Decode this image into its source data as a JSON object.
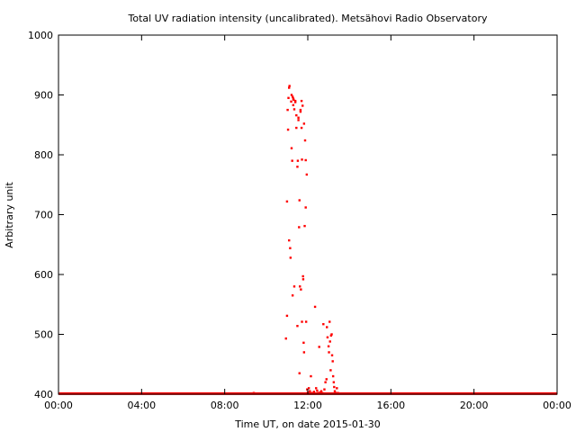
{
  "chart_data": {
    "type": "scatter",
    "title": "Total UV radiation intensity (uncalibrated). Metsähovi Radio Observatory",
    "xlabel": "Time UT, on date 2015-01-30",
    "ylabel": "Arbitrary unit",
    "x_unit": "hours UT",
    "xlim": [
      0,
      24
    ],
    "ylim": [
      400,
      1000
    ],
    "x_ticks": [
      {
        "value": 0,
        "label": "00:00"
      },
      {
        "value": 4,
        "label": "04:00"
      },
      {
        "value": 8,
        "label": "08:00"
      },
      {
        "value": 12,
        "label": "12:00"
      },
      {
        "value": 16,
        "label": "16:00"
      },
      {
        "value": 20,
        "label": "20:00"
      },
      {
        "value": 24,
        "label": "00:00"
      }
    ],
    "y_ticks": [
      {
        "value": 400,
        "label": "400"
      },
      {
        "value": 500,
        "label": "500"
      },
      {
        "value": 600,
        "label": "600"
      },
      {
        "value": 700,
        "label": "700"
      },
      {
        "value": 800,
        "label": "800"
      },
      {
        "value": 900,
        "label": "900"
      },
      {
        "value": 1000,
        "label": "1000"
      }
    ],
    "grid": false,
    "legend": "none",
    "color": "#ff0000",
    "baseline": {
      "x_start": 0,
      "x_end": 24,
      "value": 401
    },
    "series": [
      {
        "points": [
          [
            9.4,
            402
          ],
          [
            10.95,
            493
          ],
          [
            11.0,
            531
          ],
          [
            11.0,
            722
          ],
          [
            11.03,
            875
          ],
          [
            11.05,
            842
          ],
          [
            11.07,
            895
          ],
          [
            11.1,
            657
          ],
          [
            11.1,
            912
          ],
          [
            11.12,
            915
          ],
          [
            11.15,
            644
          ],
          [
            11.17,
            628
          ],
          [
            11.2,
            889
          ],
          [
            11.22,
            900
          ],
          [
            11.22,
            811
          ],
          [
            11.25,
            790
          ],
          [
            11.27,
            897
          ],
          [
            11.27,
            565
          ],
          [
            11.3,
            883
          ],
          [
            11.3,
            894
          ],
          [
            11.32,
            892
          ],
          [
            11.35,
            876
          ],
          [
            11.35,
            580
          ],
          [
            11.4,
            890
          ],
          [
            11.4,
            888
          ],
          [
            11.45,
            866
          ],
          [
            11.45,
            845
          ],
          [
            11.5,
            780
          ],
          [
            11.5,
            514
          ],
          [
            11.52,
            790
          ],
          [
            11.55,
            858
          ],
          [
            11.55,
            862
          ],
          [
            11.58,
            679
          ],
          [
            11.6,
            724
          ],
          [
            11.6,
            435
          ],
          [
            11.62,
            580
          ],
          [
            11.65,
            875
          ],
          [
            11.65,
            872
          ],
          [
            11.67,
            575
          ],
          [
            11.7,
            845
          ],
          [
            11.7,
            890
          ],
          [
            11.72,
            792
          ],
          [
            11.72,
            521
          ],
          [
            11.75,
            882
          ],
          [
            11.77,
            597
          ],
          [
            11.78,
            592
          ],
          [
            11.8,
            486
          ],
          [
            11.82,
            852
          ],
          [
            11.82,
            470
          ],
          [
            11.85,
            681
          ],
          [
            11.87,
            824
          ],
          [
            11.9,
            712
          ],
          [
            11.9,
            791
          ],
          [
            11.92,
            521
          ],
          [
            11.95,
            767
          ],
          [
            11.97,
            408
          ],
          [
            12.0,
            403
          ],
          [
            12.05,
            410
          ],
          [
            12.1,
            405
          ],
          [
            12.15,
            430
          ],
          [
            12.2,
            402
          ],
          [
            12.3,
            404
          ],
          [
            12.35,
            546
          ],
          [
            12.4,
            410
          ],
          [
            12.45,
            406
          ],
          [
            12.5,
            402
          ],
          [
            12.55,
            479
          ],
          [
            12.6,
            403
          ],
          [
            12.65,
            405
          ],
          [
            12.7,
            402
          ],
          [
            12.75,
            517
          ],
          [
            12.8,
            408
          ],
          [
            12.85,
            420
          ],
          [
            12.9,
            425
          ],
          [
            12.92,
            512
          ],
          [
            12.95,
            495
          ],
          [
            13.0,
            480
          ],
          [
            13.02,
            470
          ],
          [
            13.05,
            521
          ],
          [
            13.07,
            488
          ],
          [
            13.1,
            440
          ],
          [
            13.12,
            498
          ],
          [
            13.15,
            500
          ],
          [
            13.17,
            465
          ],
          [
            13.2,
            455
          ],
          [
            13.22,
            430
          ],
          [
            13.25,
            420
          ],
          [
            13.27,
            412
          ],
          [
            13.3,
            405
          ],
          [
            13.35,
            402
          ],
          [
            13.4,
            410
          ],
          [
            13.45,
            402
          ],
          [
            13.5,
            401
          ]
        ]
      }
    ]
  }
}
